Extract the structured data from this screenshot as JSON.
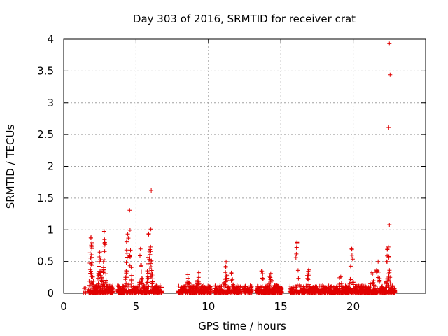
{
  "chart_data": {
    "type": "scatter",
    "title": "Day 303 of 2016, SRMTID for receiver crat",
    "xlabel": "GPS time / hours",
    "ylabel": "SRMTID / TECUs",
    "xlim": [
      0,
      25
    ],
    "ylim": [
      0,
      4
    ],
    "x_ticks": [
      0,
      5,
      10,
      15,
      20
    ],
    "y_ticks": [
      0,
      0.5,
      1,
      1.5,
      2,
      2.5,
      3,
      3.5,
      4
    ],
    "x_tick_labels": [
      "0",
      "5",
      "10",
      "15",
      "20"
    ],
    "y_tick_labels": [
      "0",
      "0.5",
      "1",
      "1.5",
      "2",
      "2.5",
      "3",
      "3.5",
      "4"
    ],
    "grid": true,
    "marker": "+",
    "series_color": "#e00000",
    "clusters": [
      {
        "start": 1.3,
        "end": 1.6,
        "count": 6,
        "peaks": []
      },
      {
        "start": 1.7,
        "end": 3.4,
        "count": 300,
        "peaks": [
          [
            1.9,
            1.0
          ],
          [
            2.8,
            0.98
          ],
          [
            2.5,
            0.75
          ]
        ]
      },
      {
        "start": 3.7,
        "end": 6.8,
        "count": 420,
        "peaks": [
          [
            4.55,
            1.42
          ],
          [
            4.4,
            1.2
          ],
          [
            6.0,
            1.15
          ],
          [
            5.9,
            1.0
          ],
          [
            5.3,
            0.8
          ]
        ]
      },
      {
        "start": 7.9,
        "end": 10.2,
        "count": 260,
        "peaks": [
          [
            8.6,
            0.35
          ],
          [
            9.3,
            0.35
          ]
        ]
      },
      {
        "start": 10.4,
        "end": 13.0,
        "count": 280,
        "peaks": [
          [
            11.2,
            0.55
          ],
          [
            11.6,
            0.38
          ]
        ]
      },
      {
        "start": 13.3,
        "end": 15.1,
        "count": 260,
        "peaks": [
          [
            13.7,
            0.42
          ],
          [
            14.3,
            0.4
          ]
        ]
      },
      {
        "start": 15.6,
        "end": 16.0,
        "count": 30,
        "peaks": []
      },
      {
        "start": 16.0,
        "end": 18.6,
        "count": 320,
        "peaks": [
          [
            16.1,
            0.83
          ],
          [
            16.9,
            0.4
          ]
        ]
      },
      {
        "start": 18.6,
        "end": 20.5,
        "count": 240,
        "peaks": [
          [
            19.9,
            0.78
          ],
          [
            19.1,
            0.3
          ]
        ]
      },
      {
        "start": 20.5,
        "end": 21.6,
        "count": 150,
        "peaks": [
          [
            21.3,
            0.55
          ]
        ]
      },
      {
        "start": 21.6,
        "end": 22.9,
        "count": 160,
        "peaks": [
          [
            21.7,
            0.84
          ],
          [
            22.4,
            1.05
          ]
        ]
      }
    ],
    "outliers": [
      {
        "x": 6.05,
        "y": 1.62
      },
      {
        "x": 22.5,
        "y": 3.93
      },
      {
        "x": 22.55,
        "y": 3.44
      },
      {
        "x": 22.45,
        "y": 2.61
      },
      {
        "x": 22.5,
        "y": 1.08
      }
    ]
  }
}
